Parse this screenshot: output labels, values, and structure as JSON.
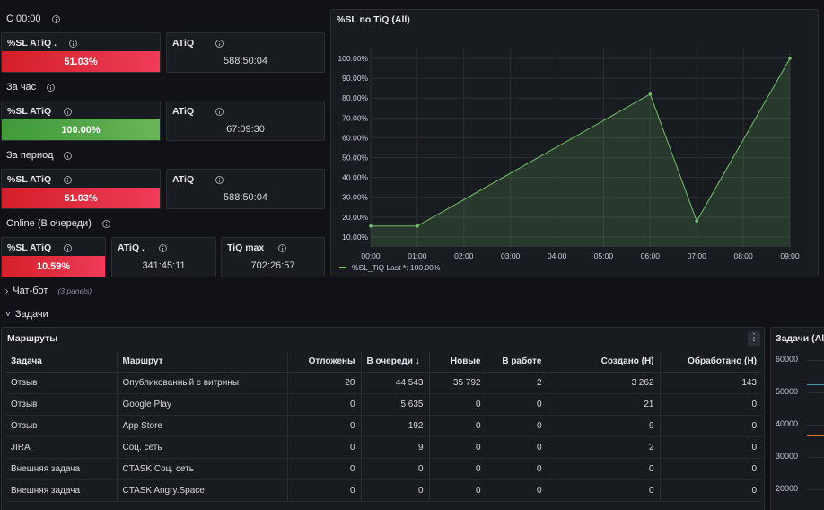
{
  "sections": {
    "since_midnight": "С 00:00",
    "per_hour": "За час",
    "per_period": "За период",
    "online": "Online (В очереди)"
  },
  "stats": {
    "s1_sl_title": "%SL ATiQ .",
    "s1_sl_value": "51.03%",
    "s1_atiq_title": "ATiQ",
    "s1_atiq_value": "588:50:04",
    "s2_sl_title": "%SL ATiQ",
    "s2_sl_value": "100.00%",
    "s2_atiq_title": "ATiQ",
    "s2_atiq_value": "67:09:30",
    "s3_sl_title": "%SL ATiQ",
    "s3_sl_value": "51.03%",
    "s3_atiq_title": "ATiQ",
    "s3_atiq_value": "588:50:04",
    "s4_sl_title": "%SL ATiQ",
    "s4_sl_value": "10.59%",
    "s4_atiq_title": "ATiQ .",
    "s4_atiq_value": "341:45:11",
    "s4_max_title": "TiQ max",
    "s4_max_value": "702:26:57"
  },
  "colors": {
    "red": "#e02f44",
    "green": "#56a64b",
    "line": "#73bf69"
  },
  "chart_data": {
    "type": "area",
    "title": "%SL по TiQ (All)",
    "x": [
      "00:00",
      "01:00",
      "06:00",
      "07:00",
      "09:00"
    ],
    "x_ticks": [
      "00:00",
      "01:00",
      "02:00",
      "03:00",
      "04:00",
      "05:00",
      "06:00",
      "07:00",
      "08:00",
      "09:00"
    ],
    "y_ticks": [
      "10.00%",
      "20.00%",
      "30.00%",
      "40.00%",
      "50.00%",
      "60.00%",
      "70.00%",
      "80.00%",
      "90.00%",
      "100.00%"
    ],
    "series": [
      {
        "name": "%SL_TiQ",
        "values": [
          15.5,
          15.5,
          82,
          18,
          100
        ]
      }
    ],
    "ylim": [
      5,
      100
    ],
    "xlim_hours": [
      0,
      9
    ],
    "legend_text": "%SL_TiQ  Last *: 100.00%",
    "legend_position": "bottom-left",
    "grid": true
  },
  "rows": {
    "chatbot_label": "Чат-бот",
    "chatbot_count": "(3 panels)",
    "tasks_label": "Задачи"
  },
  "routes": {
    "title": "Маршруты",
    "menu_icon": "kebab-icon",
    "columns": [
      "Задача",
      "Маршрут",
      "Отложены",
      "В очереди",
      "Новые",
      "В работе",
      "Создано (Н)",
      "Обработано (Н)"
    ],
    "rows": [
      [
        "Отзыв",
        "Опубликованный с витрины",
        "20",
        "44 543",
        "35 792",
        "2",
        "3 262",
        "143"
      ],
      [
        "Отзыв",
        "Google Play",
        "0",
        "5 635",
        "0",
        "0",
        "21",
        "0"
      ],
      [
        "Отзыв",
        "App Store",
        "0",
        "192",
        "0",
        "0",
        "9",
        "0"
      ],
      [
        "JIRA",
        "Соц. сеть",
        "0",
        "9",
        "0",
        "0",
        "2",
        "0"
      ],
      [
        "Внешняя задача",
        "CTASK Соц. сеть",
        "0",
        "0",
        "0",
        "0",
        "0",
        "0"
      ],
      [
        "Внешняя задача",
        "CTASK Angry.Space",
        "0",
        "0",
        "0",
        "0",
        "0",
        "0"
      ]
    ]
  },
  "tasks_chart": {
    "title": "Задачи (All)",
    "y_ticks": [
      "60000",
      "50000",
      "40000",
      "30000",
      "20000"
    ]
  }
}
